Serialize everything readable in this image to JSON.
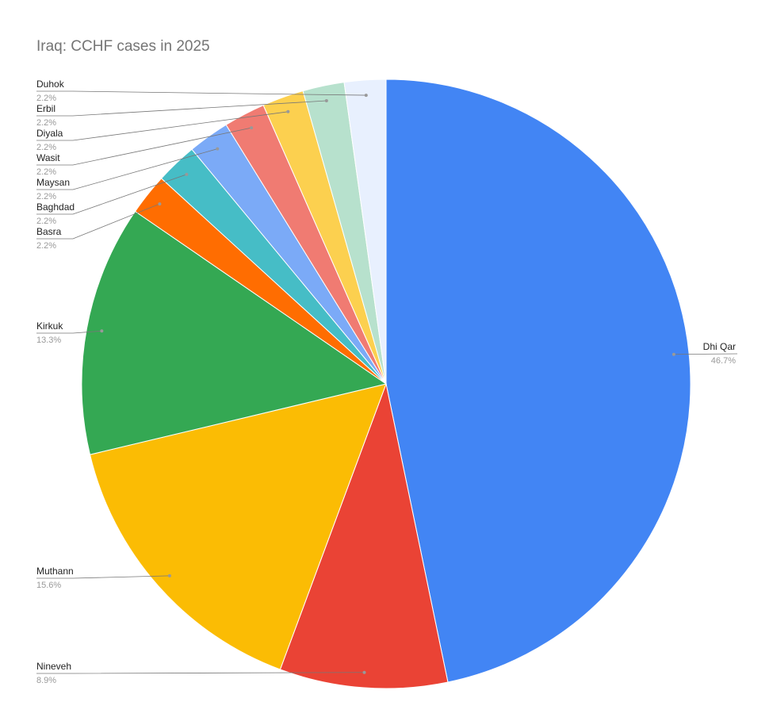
{
  "chart_data": {
    "type": "pie",
    "title": "Iraq: CCHF cases in 2025",
    "categories": [
      "Dhi Qar",
      "Nineveh",
      "Muthann",
      "Kirkuk",
      "Basra",
      "Baghdad",
      "Maysan",
      "Wasit",
      "Diyala",
      "Erbil",
      "Duhok"
    ],
    "values": [
      46.7,
      8.9,
      15.6,
      13.3,
      2.2,
      2.2,
      2.2,
      2.2,
      2.2,
      2.2,
      2.2
    ],
    "value_labels": [
      "46.7%",
      "8.9%",
      "15.6%",
      "13.3%",
      "2.2%",
      "2.2%",
      "2.2%",
      "2.2%",
      "2.2%",
      "2.2%",
      "2.2%"
    ],
    "colors": [
      "#4285f4",
      "#ea4335",
      "#fbbc04",
      "#34a853",
      "#ff6d01",
      "#46bdc6",
      "#7baaf7",
      "#f07b72",
      "#fcd04f",
      "#b7e1cd",
      "#e8f0fe"
    ]
  }
}
